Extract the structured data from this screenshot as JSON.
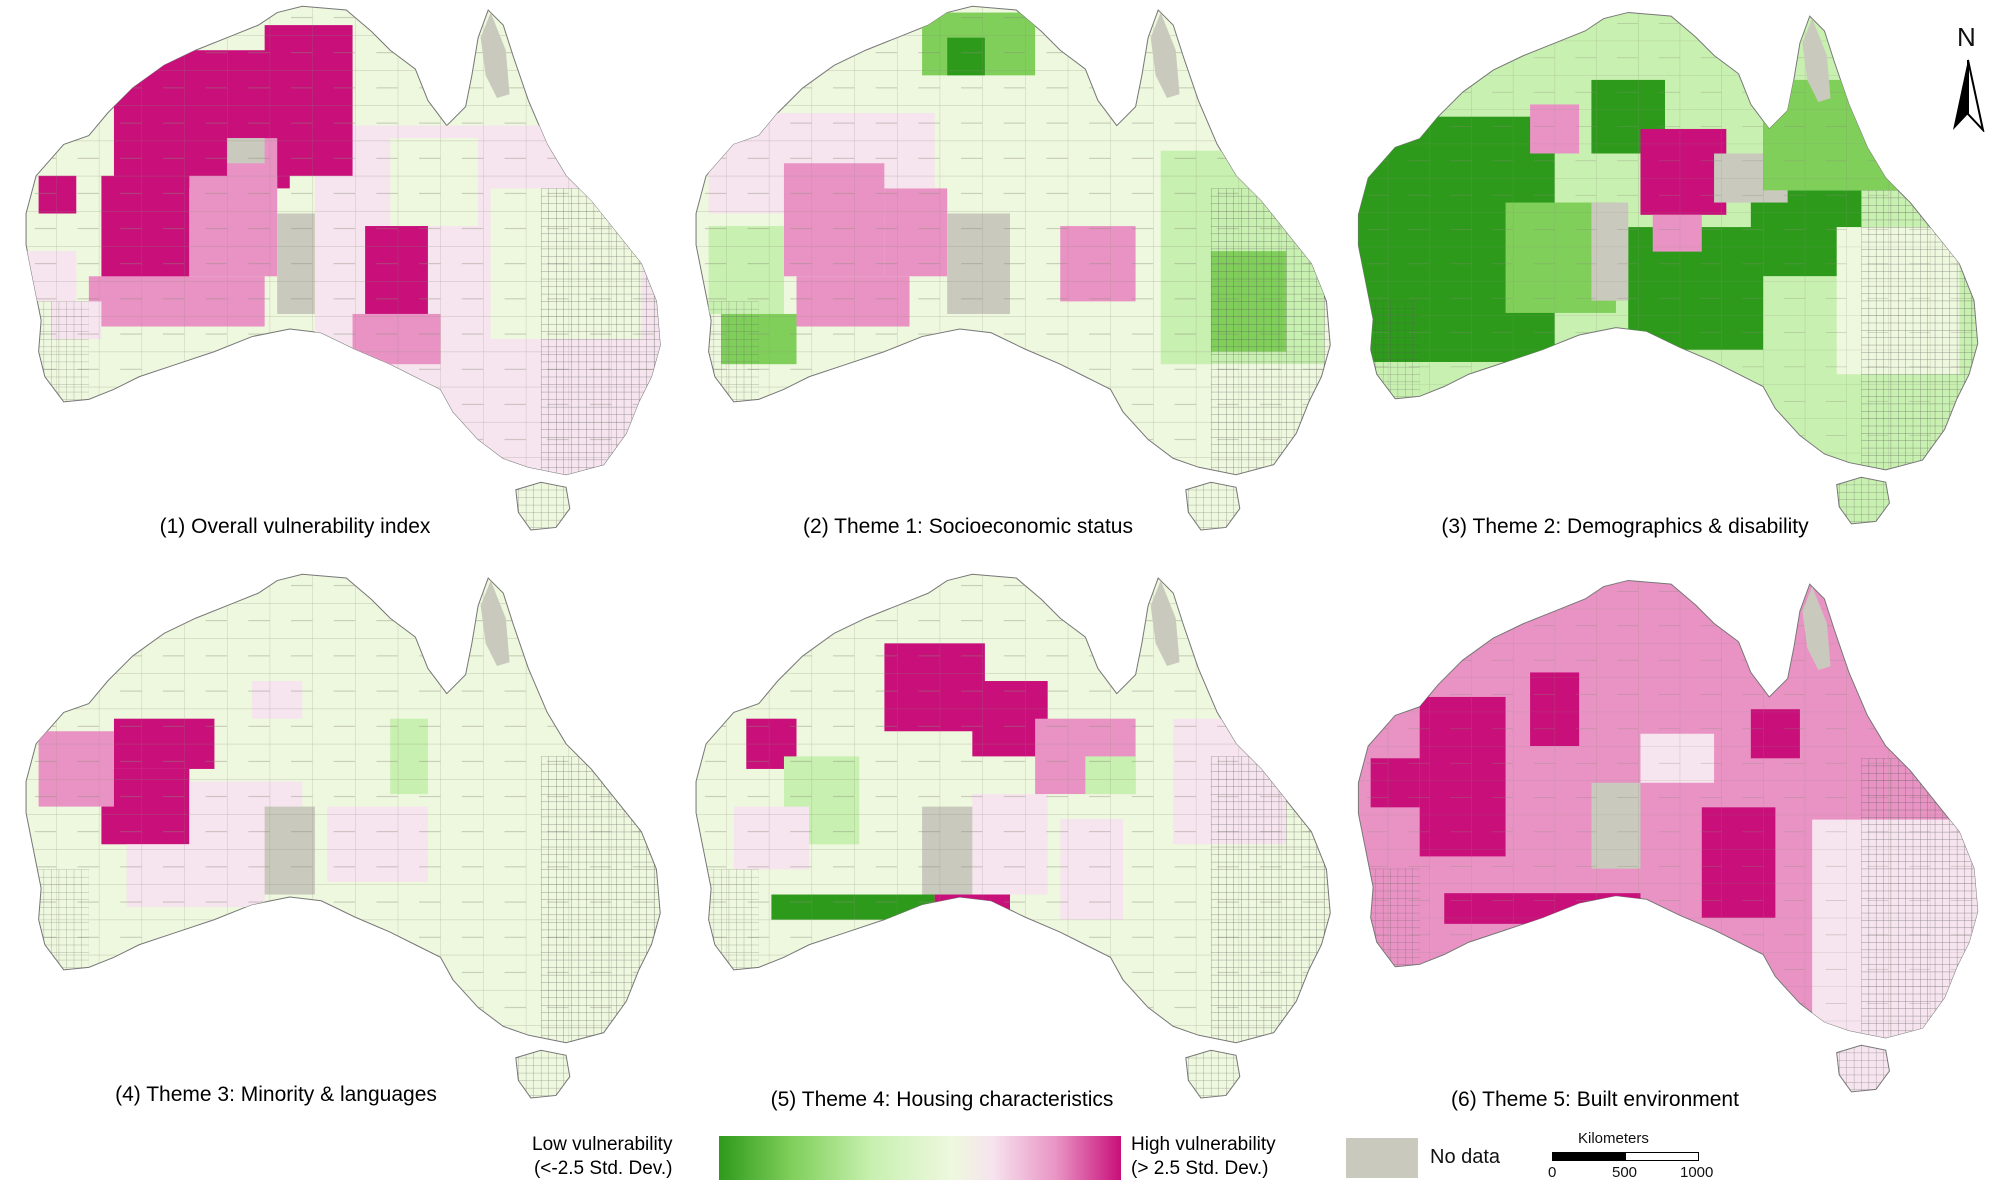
{
  "panels": [
    {
      "caption": "(1) Overall vulnerability index",
      "style": "overall"
    },
    {
      "caption": "(2) Theme 1: Socioeconomic status",
      "style": "socio"
    },
    {
      "caption": "(3) Theme 2: Demographics & disability",
      "style": "demo"
    },
    {
      "caption": "(4) Theme 3: Minority & languages",
      "style": "minority"
    },
    {
      "caption": "(5) Theme 4: Housing characteristics",
      "style": "housing"
    },
    {
      "caption": "(6) Theme 5: Built environment",
      "style": "built"
    }
  ],
  "north_arrow": {
    "label": "N"
  },
  "legend": {
    "low_line1": "Low vulnerability",
    "low_line2": "(<-2.5 Std. Dev.)",
    "high_line1": "High vulnerability",
    "high_line2": "(> 2.5 Std. Dev.)",
    "no_data_label": "No data",
    "colors": {
      "low": "#2e9a1c",
      "mid_low": "#c8f0b0",
      "mid_high": "#f6e4ee",
      "high": "#c80f7a",
      "no_data": "#c9c9bd"
    }
  },
  "scale_bar": {
    "title": "Kilometers",
    "ticks": [
      "0",
      "500",
      "1000"
    ]
  }
}
